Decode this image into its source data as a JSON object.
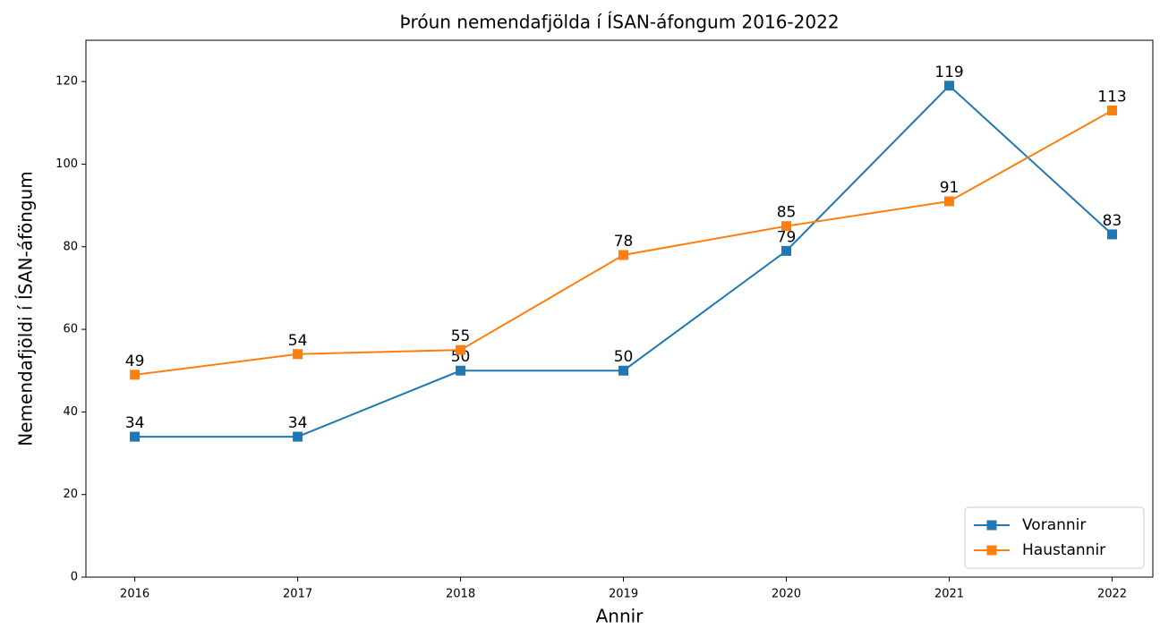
{
  "chart_data": {
    "type": "line",
    "title": "Þróun nemendafjölda í ÍSAN-áfongum 2016-2022",
    "xlabel": "Annir",
    "ylabel": "Nemendafjöldi í ÍSAN-áföngum",
    "x": [
      2016,
      2017,
      2018,
      2019,
      2020,
      2021,
      2022
    ],
    "series": [
      {
        "name": "Vorannir",
        "color": "#1f77b4",
        "values": [
          34,
          34,
          50,
          50,
          79,
          119,
          83
        ]
      },
      {
        "name": "Haustannir",
        "color": "#ff7f0e",
        "values": [
          49,
          54,
          55,
          78,
          85,
          91,
          113
        ]
      }
    ],
    "xlim": [
      2015.7,
      2022.25
    ],
    "xticks": [
      2016,
      2017,
      2018,
      2019,
      2020,
      2021,
      2022
    ],
    "ylim": [
      0,
      130
    ],
    "yticks": [
      0,
      20,
      40,
      60,
      80,
      100,
      120
    ],
    "legend": "lower right",
    "grid": false
  }
}
